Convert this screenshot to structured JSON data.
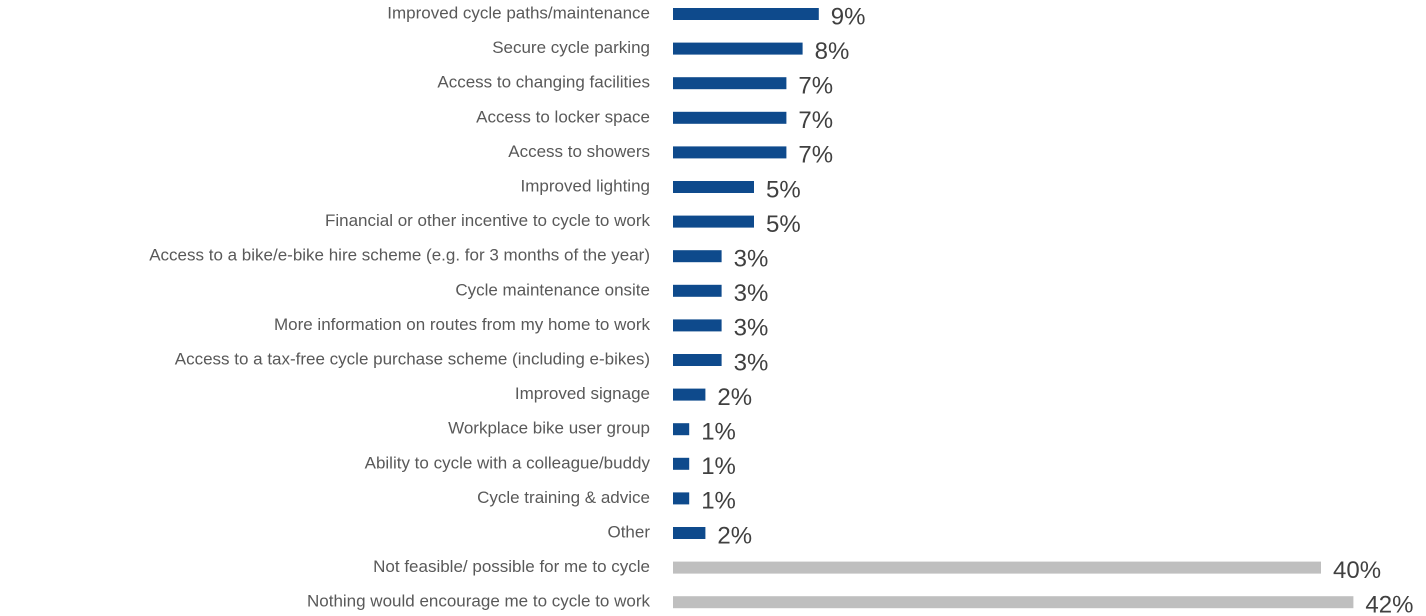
{
  "chart_data": {
    "type": "barh",
    "categories": [
      "Improved cycle paths/maintenance",
      "Secure cycle parking",
      "Access to changing facilities",
      "Access to locker space",
      "Access to showers",
      "Improved lighting",
      "Financial or other incentive to cycle to work",
      "Access to a bike/e-bike hire scheme (e.g. for 3 months of the year)",
      "Cycle maintenance onsite",
      "More information on routes from my home to work",
      "Access to a tax-free cycle purchase scheme (including e-bikes)",
      "Improved signage",
      "Workplace bike user group",
      "Ability to cycle with a colleague/buddy",
      "Cycle training & advice",
      "Other",
      "Not feasible/ possible for me to cycle",
      "Nothing would encourage me to cycle to work"
    ],
    "values": [
      9,
      8,
      7,
      7,
      7,
      5,
      5,
      3,
      3,
      3,
      3,
      2,
      1,
      1,
      1,
      2,
      40,
      42
    ],
    "value_labels": [
      "9%",
      "8%",
      "7%",
      "7%",
      "7%",
      "5%",
      "5%",
      "3%",
      "3%",
      "3%",
      "3%",
      "2%",
      "1%",
      "1%",
      "1%",
      "2%",
      "40%",
      "42%"
    ],
    "colors": [
      "#0e4a8c",
      "#0e4a8c",
      "#0e4a8c",
      "#0e4a8c",
      "#0e4a8c",
      "#0e4a8c",
      "#0e4a8c",
      "#0e4a8c",
      "#0e4a8c",
      "#0e4a8c",
      "#0e4a8c",
      "#0e4a8c",
      "#0e4a8c",
      "#0e4a8c",
      "#0e4a8c",
      "#0e4a8c",
      "#bfbfbf",
      "#bfbfbf"
    ]
  }
}
